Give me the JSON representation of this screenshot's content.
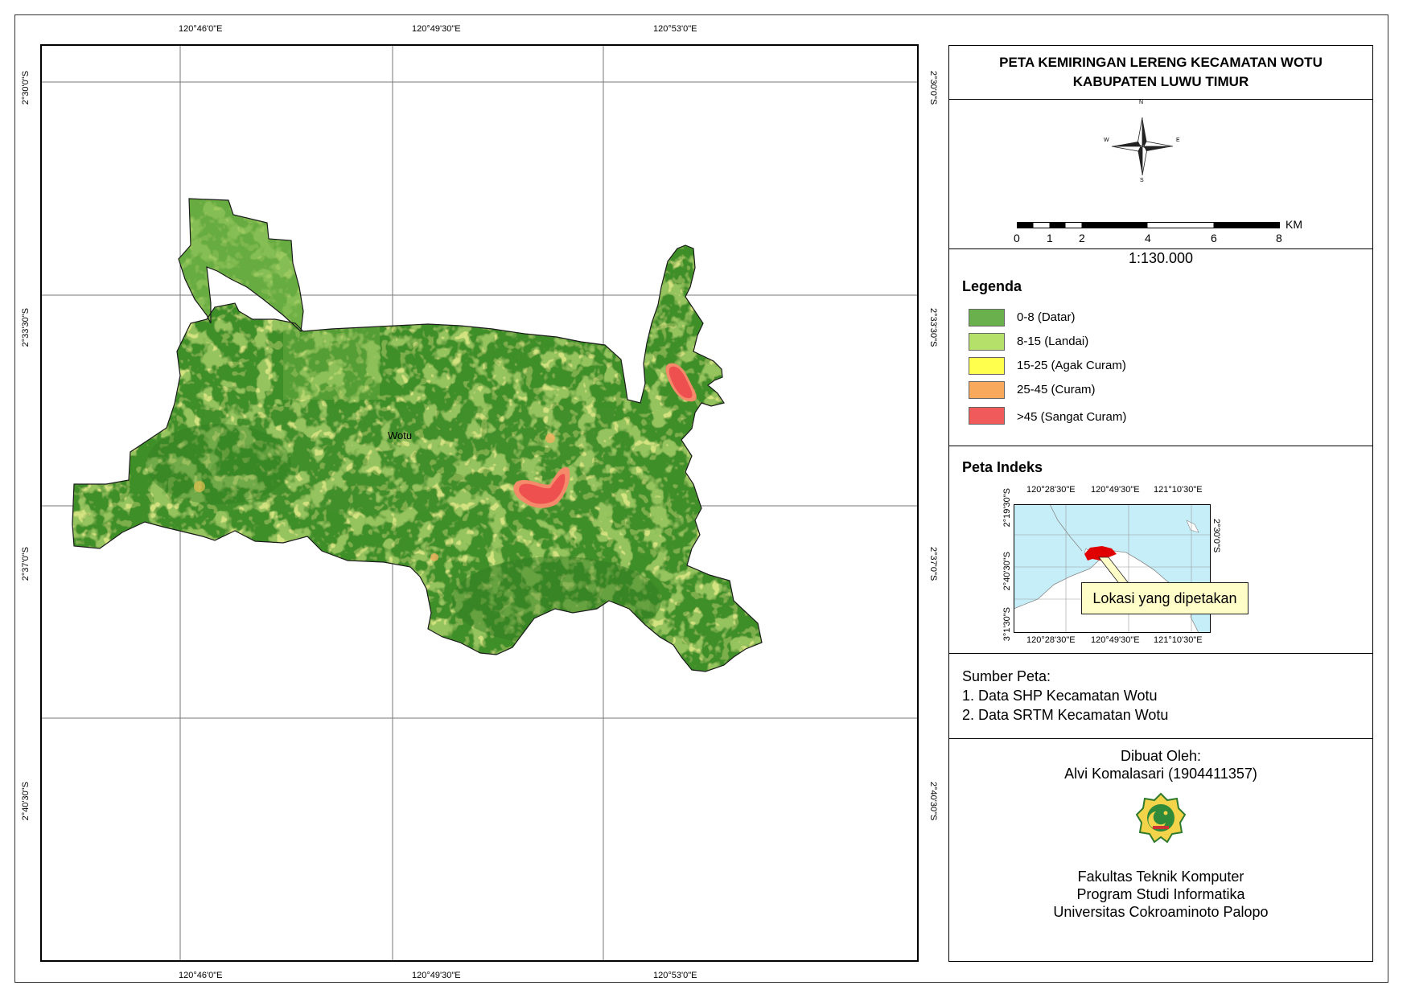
{
  "map": {
    "place_label": "Wotu",
    "top_lon_labels": [
      "120°46'0\"E",
      "120°49'30\"E",
      "120°53'0\"E"
    ],
    "bottom_lon_labels": [
      "120°46'0\"E",
      "120°49'30\"E",
      "120°53'0\"E"
    ],
    "left_lat_labels": [
      "2°30'0\"S",
      "2°33'30\"S",
      "2°37'0\"S",
      "2°40'30\"S"
    ],
    "right_lat_labels": [
      "2°30'0\"S",
      "2°33'30\"S",
      "2°37'0\"S",
      "2°40'30\"S"
    ]
  },
  "title": {
    "line1": "PETA KEMIRINGAN LERENG KECAMATAN WOTU",
    "line2": "KABUPATEN LUWU TIMUR"
  },
  "north_arrow": {
    "n": "N",
    "s": "S",
    "e": "E",
    "w": "W"
  },
  "scale_bar": {
    "unit": "KM",
    "ticks": [
      "0",
      "1",
      "2",
      "4",
      "6",
      "8"
    ],
    "ratio": "1:130.000"
  },
  "legend": {
    "title": "Legenda",
    "items": [
      {
        "label": "0-8 (Datar)",
        "color": "#6ab04c"
      },
      {
        "label": "8-15 (Landai)",
        "color": "#b5e06a"
      },
      {
        "label": "15-25 (Agak Curam)",
        "color": "#ffff4d"
      },
      {
        "label": "25-45 (Curam)",
        "color": "#f8a95c"
      },
      {
        "label": ">45 (Sangat Curam)",
        "color": "#f05a5a"
      }
    ]
  },
  "index_map": {
    "title": "Peta Indeks",
    "top_labels": [
      "120°28'30\"E",
      "120°49'30\"E",
      "121°10'30\"E"
    ],
    "bottom_labels": [
      "120°28'30\"E",
      "120°49'30\"E",
      "121°10'30\"E"
    ],
    "left_labels": [
      "2°19'30\"S",
      "2°40'30\"S",
      "3°1'30\"S"
    ],
    "right_labels": [
      "2°30'0\"S"
    ],
    "callout": "Lokasi yang dipetakan"
  },
  "source": {
    "title": "Sumber Peta:",
    "items": [
      "1. Data SHP Kecamatan Wotu",
      "2. Data SRTM Kecamatan Wotu"
    ]
  },
  "author": {
    "made_by": "Dibuat Oleh:",
    "name": "Alvi Komalasari (1904411357)",
    "faculty": "Fakultas Teknik Komputer",
    "program": "Program Studi Informatika",
    "university": "Universitas Cokroaminoto Palopo"
  }
}
